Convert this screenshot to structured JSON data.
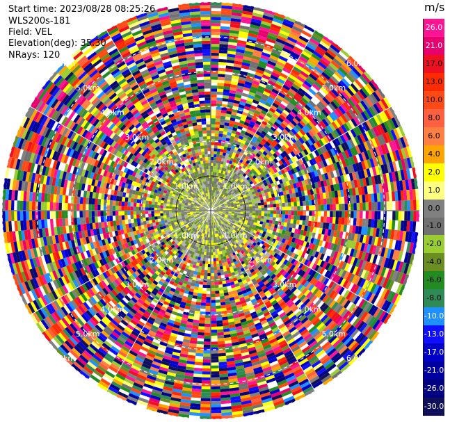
{
  "header": {
    "start_time": "Start time: 2023/08/28 08:25:26",
    "station": "WLS200s-181",
    "field": "Field: VEL",
    "elevation": "Elevation(deg): 35.30",
    "nrays": "NRays: 120"
  },
  "chart_data": {
    "type": "heatmap",
    "projection": "polar",
    "field": "VEL",
    "unit": "m/s",
    "nrays": 120,
    "range_rings_km": [
      1,
      2,
      3,
      4,
      5,
      6
    ],
    "ring_labels": [
      "1.0km",
      "2.0km",
      "3.0km",
      "4.0km",
      "5.0km",
      "6.0km"
    ],
    "ring_label_bearings_deg": [
      45,
      135,
      225,
      315
    ],
    "colorbar": {
      "title": "m/s",
      "ticks": [
        "26.0",
        "21.0",
        "17.0",
        "13.0",
        "10.0",
        "8.0",
        "6.0",
        "4.0",
        "2.0",
        "1.0",
        "0.0",
        "-1.0",
        "-2.0",
        "-4.0",
        "-6.0",
        "-8.0",
        "-10.0",
        "-13.0",
        "-17.0",
        "-21.0",
        "-26.0",
        "-30.0"
      ],
      "colors": [
        "#ff1493",
        "#e8006e",
        "#ee1020",
        "#ff2a00",
        "#ff4a14",
        "#ff6040",
        "#ff8040",
        "#ffa500",
        "#ffff00",
        "#ffff80",
        "#808080",
        "#707070",
        "#9acd32",
        "#6b8e23",
        "#228b22",
        "#2e8b57",
        "#1e90ff",
        "#1010ff",
        "#0000c8",
        "#0000a0",
        "#000080",
        "#10105a"
      ]
    }
  }
}
